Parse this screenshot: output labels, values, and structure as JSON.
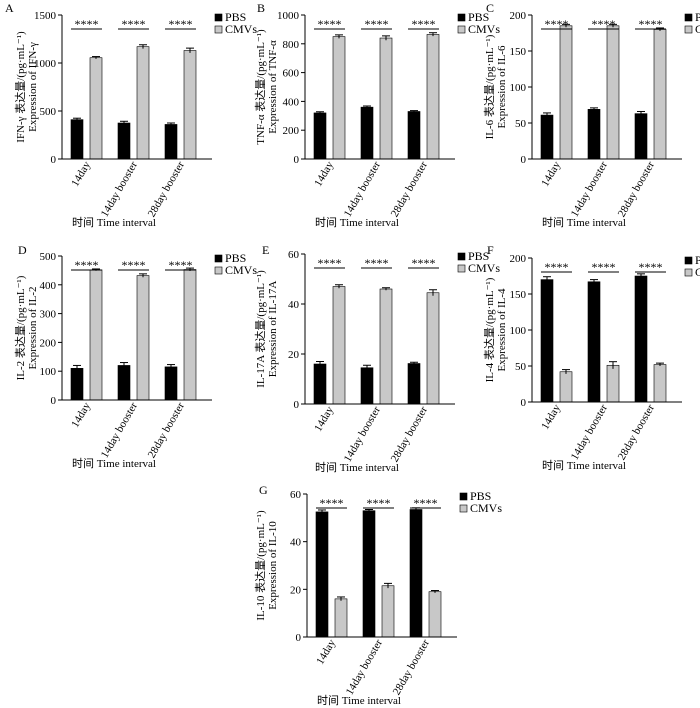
{
  "figure": {
    "xlabel": "时间 Time interval",
    "categories": [
      "14day",
      "14day booster",
      "28day booster"
    ],
    "legend": [
      "PBS",
      "CMVs"
    ],
    "significance": "****",
    "colors": {
      "PBS": "#000000",
      "CMVs": "#c8c8c8"
    }
  },
  "chart_data": [
    {
      "type": "bar",
      "panel": "A",
      "ylabel": [
        "IFN-γ 表达量/(pg·mL⁻¹)",
        "Expression of IFN-γ"
      ],
      "ylim": [
        0,
        1500
      ],
      "yticks": [
        0,
        500,
        1000,
        1500
      ],
      "categories": [
        "14day",
        "14day booster",
        "28day booster"
      ],
      "series": [
        {
          "name": "PBS",
          "values": [
            410,
            375,
            360
          ],
          "errors": [
            15,
            18,
            15
          ]
        },
        {
          "name": "CMVs",
          "values": [
            1055,
            1170,
            1130
          ],
          "errors": [
            12,
            20,
            25
          ]
        }
      ],
      "annotations": [
        "****",
        "****",
        "****"
      ],
      "legend_position": "top-right"
    },
    {
      "type": "bar",
      "panel": "B",
      "ylabel": [
        "TNF-α 表达量/(pg·mL⁻¹)",
        "Expression of TNF-α"
      ],
      "ylim": [
        0,
        1000
      ],
      "yticks": [
        0,
        200,
        400,
        600,
        800,
        1000
      ],
      "categories": [
        "14day",
        "14day booster",
        "28day booster"
      ],
      "series": [
        {
          "name": "PBS",
          "values": [
            320,
            360,
            330
          ],
          "errors": [
            8,
            8,
            6
          ]
        },
        {
          "name": "CMVs",
          "values": [
            850,
            840,
            865
          ],
          "errors": [
            12,
            15,
            12
          ]
        }
      ],
      "annotations": [
        "****",
        "****",
        "****"
      ],
      "legend_position": "top-right"
    },
    {
      "type": "bar",
      "panel": "C",
      "ylabel": [
        "IL-6 表达量/(pg·mL⁻¹)",
        "Expression of IL-6"
      ],
      "ylim": [
        0,
        200
      ],
      "yticks": [
        0,
        50,
        100,
        150,
        200
      ],
      "categories": [
        "14day",
        "14day booster",
        "28day booster"
      ],
      "series": [
        {
          "name": "PBS",
          "values": [
            61,
            69,
            63
          ],
          "errors": [
            3,
            2,
            3
          ]
        },
        {
          "name": "CMVs",
          "values": [
            185,
            185,
            180
          ],
          "errors": [
            2,
            2,
            2
          ]
        }
      ],
      "annotations": [
        "****",
        "****",
        "****"
      ],
      "legend_position": "top-right"
    },
    {
      "type": "bar",
      "panel": "D",
      "ylabel": [
        "IL-2 表达量/(pg·mL⁻¹)",
        "Expression of IL-2"
      ],
      "ylim": [
        0,
        500
      ],
      "yticks": [
        0,
        100,
        200,
        300,
        400,
        500
      ],
      "categories": [
        "14day",
        "14day booster",
        "28day booster"
      ],
      "series": [
        {
          "name": "PBS",
          "values": [
            110,
            120,
            115
          ],
          "errors": [
            10,
            10,
            8
          ]
        },
        {
          "name": "CMVs",
          "values": [
            452,
            432,
            453
          ],
          "errors": [
            3,
            6,
            5
          ]
        }
      ],
      "annotations": [
        "****",
        "****",
        "****"
      ],
      "legend_position": "top-right"
    },
    {
      "type": "bar",
      "panel": "E",
      "ylabel": [
        "IL-17A 表达量/(pg·mL⁻¹)",
        "Expression of IL-17A"
      ],
      "ylim": [
        0,
        60
      ],
      "yticks": [
        0,
        20,
        40,
        60
      ],
      "categories": [
        "14day",
        "14day booster",
        "28day booster"
      ],
      "series": [
        {
          "name": "PBS",
          "values": [
            16,
            14.5,
            16.2
          ],
          "errors": [
            1,
            1,
            0.5
          ]
        },
        {
          "name": "CMVs",
          "values": [
            47,
            46,
            44.5
          ],
          "errors": [
            0.7,
            0.5,
            1.2
          ]
        }
      ],
      "annotations": [
        "****",
        "****",
        "****"
      ],
      "legend_position": "top-right"
    },
    {
      "type": "bar",
      "panel": "F",
      "ylabel": [
        "IL-4 表达量/(pg·mL⁻¹)",
        "Expression of IL-4"
      ],
      "ylim": [
        0,
        200
      ],
      "yticks": [
        0,
        50,
        100,
        150,
        200
      ],
      "categories": [
        "14day",
        "14day booster",
        "28day booster"
      ],
      "series": [
        {
          "name": "PBS",
          "values": [
            170,
            167,
            175
          ],
          "errors": [
            4,
            3,
            3
          ]
        },
        {
          "name": "CMVs",
          "values": [
            42,
            51,
            52
          ],
          "errors": [
            3,
            5,
            2
          ]
        }
      ],
      "annotations": [
        "****",
        "****",
        "****"
      ],
      "legend_position": "top-right"
    },
    {
      "type": "bar",
      "panel": "G",
      "ylabel": [
        "IL-10 表达量/(pg·mL⁻¹)",
        "Expression of IL-10"
      ],
      "ylim": [
        0,
        60
      ],
      "yticks": [
        0,
        20,
        40,
        60
      ],
      "categories": [
        "14day",
        "14day booster",
        "28day booster"
      ],
      "series": [
        {
          "name": "PBS",
          "values": [
            52.5,
            53,
            53.5
          ],
          "errors": [
            0.8,
            0.5,
            0.7
          ]
        },
        {
          "name": "CMVs",
          "values": [
            16,
            21.5,
            19
          ],
          "errors": [
            0.8,
            1,
            0.5
          ]
        }
      ],
      "annotations": [
        "****",
        "****",
        "****"
      ],
      "legend_position": "top-right"
    }
  ]
}
